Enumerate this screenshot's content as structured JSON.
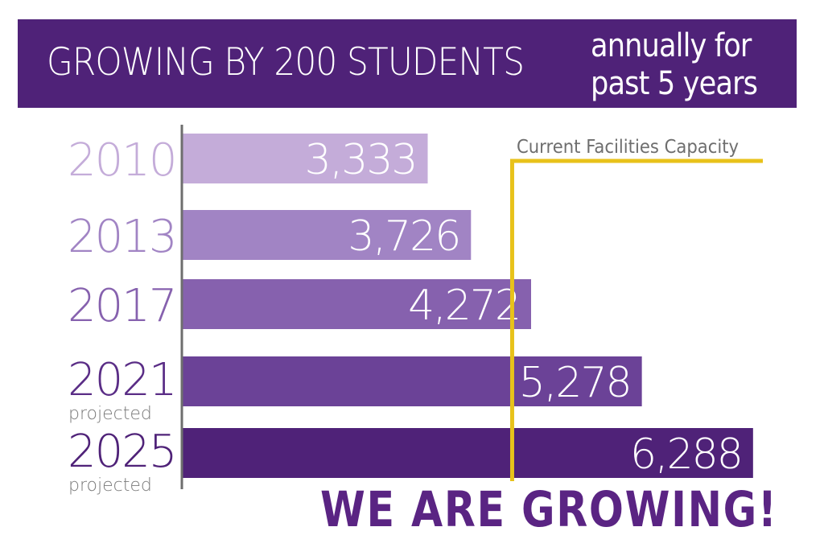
{
  "banner": {
    "title": "GROWING BY 200 STUDENTS",
    "subtitle": "annually for\npast 5 years"
  },
  "chart_data": {
    "type": "bar",
    "orientation": "horizontal",
    "categories": [
      "2010",
      "2013",
      "2017",
      "2021",
      "2025"
    ],
    "category_notes": [
      "",
      "",
      "",
      "projected",
      "projected"
    ],
    "values": [
      3333,
      3726,
      4272,
      5278,
      6288
    ],
    "value_labels": [
      "3,333",
      "3,726",
      "4,272",
      "5,278",
      "6,288"
    ],
    "bar_colors": [
      "#c4acd9",
      "#a184c4",
      "#8661ae",
      "#6b4297",
      "#4f2278"
    ],
    "reference_line": {
      "label": "Current Facilities Capacity",
      "value": 4100,
      "color": "#e8c21a"
    },
    "xlim": [
      1100,
      6450
    ]
  },
  "tagline": "WE ARE GROWING!"
}
